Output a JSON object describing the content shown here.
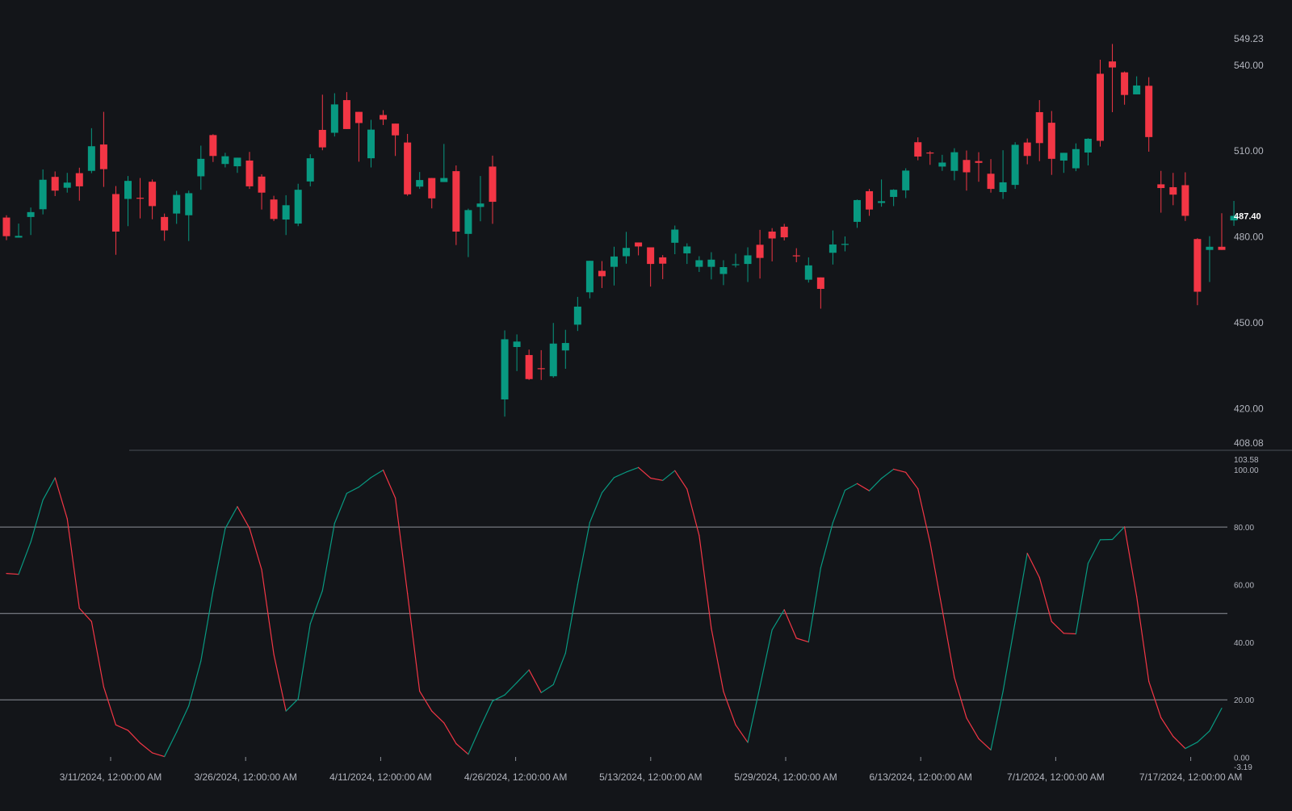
{
  "colors": {
    "background": "#131519",
    "up": "#089981",
    "down": "#f23645",
    "axis_text": "#b2b5be",
    "reference_line": "#8d9199",
    "last_price_text": "#ffffff"
  },
  "chart_data": [
    {
      "type": "candlestick",
      "title": "",
      "price_axis": {
        "ticks": [
          "549.23",
          "540.00",
          "510.00",
          "480.00",
          "450.00",
          "420.00",
          "408.08"
        ],
        "range": [
          408.08,
          549.23
        ],
        "last_price_label": "487.40"
      },
      "time_axis": {
        "ticks": [
          "3/11/2024, 12:00:00 AM",
          "3/26/2024, 12:00:00 AM",
          "4/11/2024, 12:00:00 AM",
          "4/26/2024, 12:00:00 AM",
          "5/13/2024, 12:00:00 AM",
          "5/29/2024, 12:00:00 AM",
          "6/13/2024, 12:00:00 AM",
          "7/1/2024, 12:00:00 AM",
          "7/17/2024, 12:00:00 AM"
        ]
      },
      "candles": [
        [
          486.8,
          480.3,
          487.6,
          478.9
        ],
        [
          479.8,
          480.4,
          484.7,
          480.7
        ],
        [
          487.0,
          488.7,
          490.3,
          480.7
        ],
        [
          489.7,
          500.0,
          503.6,
          487.9
        ],
        [
          501.0,
          496.2,
          502.9,
          494.3
        ],
        [
          497.2,
          499.0,
          502.4,
          495.5
        ],
        [
          502.3,
          497.7,
          504.2,
          492.7
        ],
        [
          503.1,
          511.7,
          518.0,
          502.3
        ],
        [
          512.3,
          503.7,
          523.7,
          497.5
        ],
        [
          495.0,
          481.9,
          497.8,
          473.8
        ],
        [
          493.3,
          499.6,
          501.3,
          483.8
        ],
        [
          493.7,
          493.6,
          500.6,
          486.5
        ],
        [
          499.3,
          490.8,
          500.1,
          486.2
        ],
        [
          487.0,
          482.3,
          488.2,
          478.7
        ],
        [
          488.2,
          494.7,
          496.1,
          484.6
        ],
        [
          487.6,
          495.3,
          496.2,
          478.6
        ],
        [
          501.2,
          507.3,
          511.9,
          496.5
        ],
        [
          515.6,
          508.3,
          515.9,
          506.2
        ],
        [
          505.5,
          508.2,
          509.4,
          504.3
        ],
        [
          504.7,
          507.7,
          506.1,
          502.4
        ],
        [
          506.7,
          497.7,
          509.7,
          496.8
        ],
        [
          501.1,
          495.5,
          501.9,
          489.6
        ],
        [
          493.1,
          486.3,
          494.4,
          485.6
        ],
        [
          486.1,
          491.1,
          494.6,
          480.7
        ],
        [
          484.7,
          496.5,
          498.6,
          483.8
        ],
        [
          499.4,
          507.5,
          508.9,
          497.7
        ],
        [
          517.4,
          511.3,
          529.7,
          510.3
        ],
        [
          516.4,
          526.3,
          530.2,
          515.1
        ],
        [
          527.8,
          517.7,
          530.6,
          518.9
        ],
        [
          523.7,
          519.8,
          523.4,
          506.3
        ],
        [
          507.5,
          517.5,
          520.9,
          504.3
        ],
        [
          522.6,
          521.0,
          524.3,
          519.1
        ],
        [
          519.6,
          515.5,
          518.4,
          508.3
        ],
        [
          513.0,
          494.9,
          516.0,
          494.4
        ],
        [
          497.6,
          499.9,
          502.7,
          496.8
        ],
        [
          500.6,
          493.5,
          499.9,
          490.0
        ],
        [
          499.2,
          500.6,
          512.5,
          499.3
        ],
        [
          503.0,
          481.9,
          505.0,
          477.2
        ],
        [
          481.1,
          489.4,
          489.9,
          473.0
        ],
        [
          490.5,
          491.7,
          501.3,
          485.5
        ],
        [
          504.6,
          492.3,
          508.4,
          484.6
        ],
        [
          423.3,
          444.3,
          447.4,
          417.3
        ],
        [
          441.6,
          443.5,
          446.0,
          433.2
        ],
        [
          438.8,
          430.4,
          440.7,
          430.1
        ],
        [
          434.2,
          434.1,
          440.5,
          430.1
        ],
        [
          431.4,
          442.8,
          450.0,
          430.9
        ],
        [
          440.4,
          443.0,
          447.6,
          434.0
        ],
        [
          449.4,
          455.7,
          459.1,
          447.2
        ],
        [
          460.7,
          471.7,
          468.9,
          458.6
        ],
        [
          468.2,
          466.3,
          471.6,
          462.2
        ],
        [
          469.6,
          473.2,
          476.6,
          463.1
        ],
        [
          473.3,
          476.2,
          481.8,
          470.7
        ],
        [
          478.1,
          476.7,
          477.3,
          473.6
        ],
        [
          476.4,
          470.6,
          474.6,
          462.7
        ],
        [
          472.9,
          470.7,
          473.7,
          465.3
        ],
        [
          478.0,
          482.6,
          484.0,
          474.0
        ],
        [
          474.3,
          476.7,
          477.8,
          470.6
        ],
        [
          469.6,
          471.9,
          473.3,
          467.8
        ],
        [
          469.6,
          472.1,
          474.7,
          465.2
        ],
        [
          467.1,
          469.5,
          471.9,
          463.2
        ],
        [
          470.2,
          470.5,
          474.2,
          469.4
        ],
        [
          470.6,
          473.6,
          476.4,
          464.3
        ],
        [
          477.3,
          472.7,
          482.5,
          465.5
        ],
        [
          481.9,
          479.5,
          483.1,
          471.5
        ],
        [
          483.6,
          479.9,
          484.6,
          478.8
        ],
        [
          473.6,
          473.4,
          476.1,
          471.2
        ],
        [
          465.1,
          470.1,
          472.9,
          464.1
        ],
        [
          465.9,
          461.9,
          464.4,
          455.0
        ],
        [
          474.5,
          477.4,
          482.3,
          470.4
        ],
        [
          477.3,
          477.6,
          480.2,
          475.0
        ],
        [
          485.3,
          492.9,
          493.1,
          483.2
        ],
        [
          496.0,
          489.6,
          496.8,
          487.4
        ],
        [
          491.9,
          492.5,
          500.1,
          490.6
        ],
        [
          494.0,
          496.5,
          496.7,
          490.8
        ],
        [
          496.3,
          503.2,
          504.0,
          493.6
        ],
        [
          513.1,
          508.1,
          514.8,
          506.8
        ],
        [
          509.5,
          509.4,
          510.0,
          505.2
        ],
        [
          504.6,
          506.0,
          508.7,
          503.1
        ],
        [
          503.1,
          509.6,
          511.0,
          499.8
        ],
        [
          506.9,
          502.6,
          510.2,
          496.2
        ],
        [
          506.5,
          505.9,
          509.6,
          499.3
        ],
        [
          502.1,
          496.8,
          507.2,
          495.5
        ],
        [
          495.7,
          499.1,
          510.3,
          493.3
        ],
        [
          498.2,
          512.2,
          513.1,
          496.8
        ],
        [
          513.0,
          508.3,
          514.4,
          505.4
        ],
        [
          523.6,
          512.8,
          527.8,
          506.5
        ],
        [
          519.9,
          507.3,
          524.0,
          501.7
        ],
        [
          506.7,
          509.4,
          509.0,
          502.4
        ],
        [
          504.0,
          510.7,
          512.7,
          503.0
        ],
        [
          509.5,
          514.3,
          514.5,
          505.0
        ],
        [
          537.0,
          513.6,
          541.9,
          511.6
        ],
        [
          541.3,
          539.2,
          547.4,
          523.6
        ],
        [
          537.5,
          529.6,
          537.8,
          526.2
        ],
        [
          529.8,
          532.9,
          536.1,
          532.2
        ],
        [
          532.8,
          514.9,
          535.8,
          509.8
        ],
        [
          498.4,
          497.1,
          503.1,
          488.5
        ],
        [
          497.4,
          494.8,
          502.4,
          491.1
        ],
        [
          498.1,
          487.4,
          502.6,
          485.6
        ],
        [
          479.3,
          460.9,
          479.6,
          456.2
        ],
        [
          475.5,
          476.6,
          480.3,
          464.3
        ],
        [
          476.6,
          475.5,
          488.3,
          476.1
        ],
        [
          485.8,
          487.4,
          492.6,
          483.9
        ]
      ]
    },
    {
      "type": "line",
      "title": "",
      "y_axis": {
        "ticks": [
          "103.58",
          "100.00",
          "80.00",
          "60.00",
          "40.00",
          "20.00",
          "0.00",
          "-3.19"
        ],
        "range": [
          -3.19,
          103.58
        ]
      },
      "reference_levels": [
        80,
        50,
        20
      ],
      "x_index_range": [
        0,
        100
      ],
      "values": [
        63.9,
        63.6,
        74.8,
        89.4,
        97.1,
        82.9,
        51.8,
        47.2,
        24.5,
        11.3,
        9.4,
        5.0,
        1.6,
        0.3,
        8.8,
        17.9,
        33.5,
        57.9,
        79.5,
        87.1,
        79.6,
        65.2,
        35.8,
        16.1,
        20.3,
        46.4,
        57.9,
        81.3,
        91.7,
        93.9,
        97.2,
        99.8,
        90.1,
        56.9,
        23.0,
        16.1,
        12.0,
        4.8,
        1.1,
        10.6,
        19.6,
        21.7,
        26.0,
        30.4,
        22.5,
        25.3,
        36.2,
        60.0,
        81.6,
        91.9,
        97.2,
        99.1,
        100.7,
        97.0,
        96.2,
        99.6,
        93.2,
        77.1,
        44.8,
        22.9,
        11.3,
        5.2,
        24.6,
        44.3,
        51.3,
        41.4,
        40.1,
        65.8,
        81.5,
        92.8,
        95.1,
        92.6,
        96.9,
        100.1,
        99.0,
        93.3,
        74.6,
        51.4,
        27.8,
        13.7,
        6.5,
        2.6,
        22.9,
        47.0,
        70.9,
        62.5,
        47.2,
        43.1,
        42.9,
        67.4,
        75.6,
        75.7,
        80.1,
        55.9,
        26.4,
        13.8,
        7.3,
        3.1,
        5.3,
        9.2,
        17.1
      ]
    }
  ]
}
